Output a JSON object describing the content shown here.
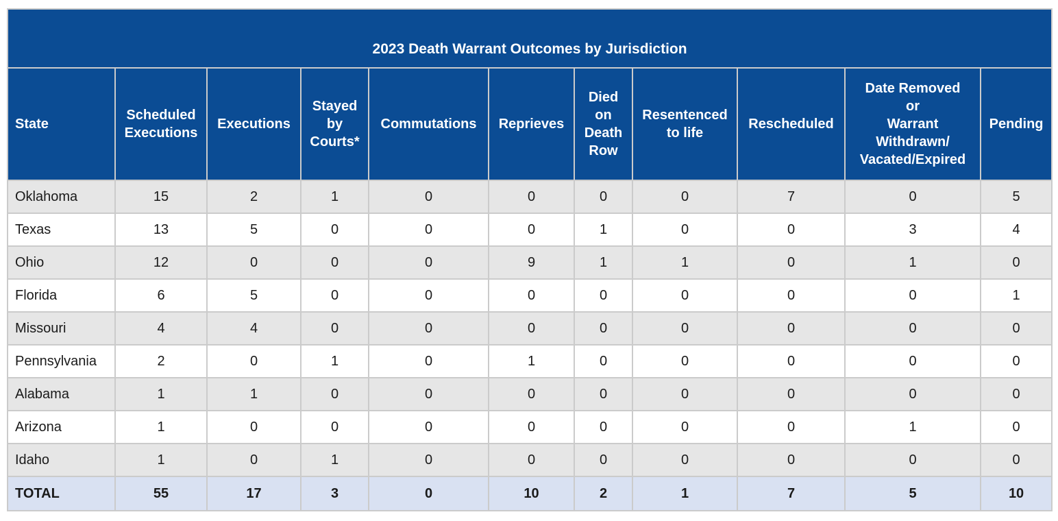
{
  "chart_data": {
    "type": "table",
    "title": "2023 Death Warrant Outcomes by Jurisdiction",
    "columns": [
      "State",
      "Scheduled\nExecutions",
      "Executions",
      "Stayed\nby\nCourts*",
      "Commutations",
      "Reprieves",
      "Died\non\nDeath\nRow",
      "Resentenced\nto life",
      "Rescheduled",
      "Date Removed\nor\nWarrant\nWithdrawn/\nVacated/Expired",
      "Pending"
    ],
    "rows": [
      {
        "state": "Oklahoma",
        "values": [
          "15",
          "2",
          "1",
          "0",
          "0",
          "0",
          "0",
          "7",
          "0",
          "5"
        ]
      },
      {
        "state": "Texas",
        "values": [
          "13",
          "5",
          "0",
          "0",
          "0",
          "1",
          "0",
          "0",
          "3",
          "4"
        ]
      },
      {
        "state": "Ohio",
        "values": [
          "12",
          "0",
          "0",
          "0",
          "9",
          "1",
          "1",
          "0",
          "1",
          "0"
        ]
      },
      {
        "state": "Florida",
        "values": [
          "6",
          "5",
          "0",
          "0",
          "0",
          "0",
          "0",
          "0",
          "0",
          "1"
        ]
      },
      {
        "state": "Missouri",
        "values": [
          "4",
          "4",
          "0",
          "0",
          "0",
          "0",
          "0",
          "0",
          "0",
          "0"
        ]
      },
      {
        "state": "Pennsylvania",
        "values": [
          "2",
          "0",
          "1",
          "0",
          "1",
          "0",
          "0",
          "0",
          "0",
          "0"
        ]
      },
      {
        "state": "Alabama",
        "values": [
          "1",
          "1",
          "0",
          "0",
          "0",
          "0",
          "0",
          "0",
          "0",
          "0"
        ]
      },
      {
        "state": "Arizona",
        "values": [
          "1",
          "0",
          "0",
          "0",
          "0",
          "0",
          "0",
          "0",
          "1",
          "0"
        ]
      },
      {
        "state": "Idaho",
        "values": [
          "1",
          "0",
          "1",
          "0",
          "0",
          "0",
          "0",
          "0",
          "0",
          "0"
        ]
      }
    ],
    "total": {
      "state": "TOTAL",
      "values": [
        "55",
        "17",
        "3",
        "0",
        "10",
        "2",
        "1",
        "7",
        "5",
        "10"
      ]
    },
    "colors": {
      "header_bg": "#0b4c94",
      "header_text": "#ffffff",
      "row_alt_bg": "#e6e6e6",
      "row_bg": "#ffffff",
      "total_bg": "#d9e1f2",
      "border": "#cbcbcb"
    }
  }
}
